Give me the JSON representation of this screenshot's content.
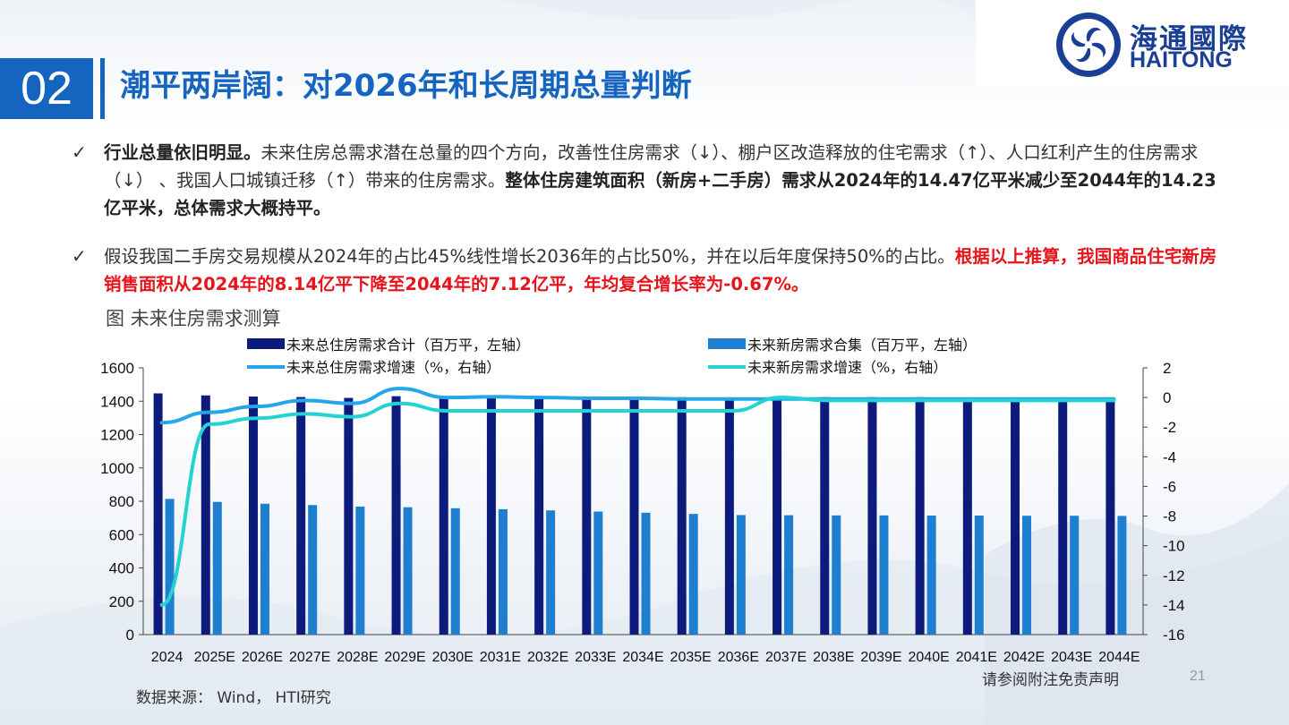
{
  "header": {
    "section_number": "02",
    "title": "潮平两岸阔：对2026年和长周期总量判断",
    "logo_cn": "海通國際",
    "logo_en": "HAITONG"
  },
  "bullets": [
    {
      "check": "✓",
      "parts": [
        {
          "text": "行业总量依旧明显。",
          "style": "bold"
        },
        {
          "text": "未来住房总需求潜在总量的四个方向，",
          "style": "normal"
        },
        {
          "text": "改善性住房需求（↓）、棚户区改造释放的住宅需求（↑）、人口红利产生的住房需求（↓） 、我国人口城镇迁移（↑）带来的住房需求。",
          "style": "normal"
        },
        {
          "text": "整体住房建筑面积（新房+二手房）需求从2024年的14.47亿平米减少至2044年的14.23亿平米，总体需求大概持平。",
          "style": "bold"
        }
      ]
    },
    {
      "check": "✓",
      "parts": [
        {
          "text": "假设我国二手房交易规模从2024年的占比45%线性增长2036年的占比50%，并在以后年度保持50%的占比。",
          "style": "normal"
        },
        {
          "text": "根据以上推算，我国商品住宅新房销售面积从2024年的8.14亿平下降至2044年的7.12亿平，年均复合增长率为-0.67%。",
          "style": "red"
        }
      ]
    }
  ],
  "figure_title": "图  未来住房需求测算",
  "source": "数据来源： Wind， HTI研究",
  "disclaimer": "请参阅附注免责声明",
  "page_number": "21",
  "colors": {
    "accent": "#1565c0",
    "total_bar": "#0d1b7d",
    "new_bar": "#1e7fd0",
    "total_line": "#25a6e8",
    "new_line": "#25d2d2",
    "red": "#e8141b"
  },
  "chart_data": {
    "type": "bar+line",
    "categories": [
      "2024",
      "2025E",
      "2026E",
      "2027E",
      "2028E",
      "2029E",
      "2030E",
      "2031E",
      "2032E",
      "2033E",
      "2034E",
      "2035E",
      "2036E",
      "2037E",
      "2038E",
      "2039E",
      "2040E",
      "2041E",
      "2042E",
      "2043E",
      "2044E"
    ],
    "series": [
      {
        "name": "未来总住房需求合计（百万平，左轴）",
        "kind": "bar",
        "axis": "left",
        "values": [
          1447,
          1435,
          1428,
          1425,
          1420,
          1430,
          1425,
          1427,
          1426,
          1425,
          1425,
          1424,
          1423,
          1424,
          1424,
          1424,
          1424,
          1423,
          1423,
          1423,
          1423
        ]
      },
      {
        "name": "未来新房需求合集（百万平，左轴）",
        "kind": "bar",
        "axis": "left",
        "values": [
          814,
          796,
          785,
          777,
          768,
          764,
          758,
          752,
          745,
          738,
          731,
          724,
          717,
          716,
          715,
          715,
          714,
          714,
          713,
          713,
          712
        ]
      },
      {
        "name": "未来总住房需求增速（%，右轴）",
        "kind": "line",
        "axis": "right",
        "values": [
          -1.7,
          -1.0,
          -0.6,
          -0.2,
          -0.4,
          0.6,
          0.0,
          0.05,
          0.0,
          -0.05,
          -0.05,
          -0.1,
          -0.1,
          -0.1,
          -0.1,
          -0.1,
          -0.1,
          -0.1,
          -0.1,
          -0.1,
          -0.1
        ]
      },
      {
        "name": "未来新房需求增速（%，右轴）",
        "kind": "line",
        "axis": "right",
        "values": [
          -14.0,
          -1.8,
          -1.4,
          -1.1,
          -1.3,
          -0.4,
          -0.9,
          -0.9,
          -0.9,
          -0.9,
          -0.9,
          -0.9,
          -0.9,
          0.0,
          -0.2,
          -0.2,
          -0.2,
          -0.2,
          -0.2,
          -0.2,
          -0.2
        ]
      }
    ],
    "left_axis": {
      "min": 0,
      "max": 1600,
      "ticks": [
        "0",
        "200",
        "400",
        "600",
        "800",
        "1000",
        "1200",
        "1400",
        "1600"
      ]
    },
    "right_axis": {
      "min": -16,
      "max": 2,
      "ticks": [
        "-16",
        "-14",
        "-12",
        "-10",
        "-8",
        "-6",
        "-4",
        "-2",
        "0",
        "2"
      ]
    },
    "legend_position": "top"
  }
}
